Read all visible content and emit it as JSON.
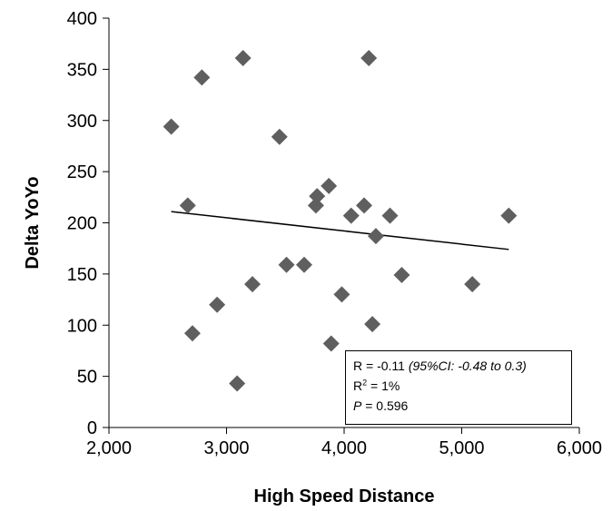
{
  "chart_data": {
    "type": "scatter",
    "title": "",
    "xlabel": "High Speed Distance",
    "ylabel": "Delta YoYo",
    "xlim": [
      2000,
      6000
    ],
    "ylim": [
      0,
      400
    ],
    "x_ticks": [
      "2,000",
      "3,000",
      "4,000",
      "5,000",
      "6,000"
    ],
    "y_ticks": [
      "0",
      "50",
      "100",
      "150",
      "200",
      "250",
      "300",
      "350",
      "400"
    ],
    "grid": false,
    "legend": "none",
    "marker": "diamond",
    "marker_color": "#5f5f5f",
    "points": [
      {
        "x": 2530,
        "y": 294
      },
      {
        "x": 2670,
        "y": 217
      },
      {
        "x": 2710,
        "y": 92
      },
      {
        "x": 2790,
        "y": 342
      },
      {
        "x": 2920,
        "y": 120
      },
      {
        "x": 3090,
        "y": 43
      },
      {
        "x": 3140,
        "y": 361
      },
      {
        "x": 3220,
        "y": 140
      },
      {
        "x": 3450,
        "y": 284
      },
      {
        "x": 3510,
        "y": 159
      },
      {
        "x": 3660,
        "y": 159
      },
      {
        "x": 3760,
        "y": 217
      },
      {
        "x": 3770,
        "y": 226
      },
      {
        "x": 3870,
        "y": 236
      },
      {
        "x": 3890,
        "y": 82
      },
      {
        "x": 3980,
        "y": 130
      },
      {
        "x": 4060,
        "y": 207
      },
      {
        "x": 4170,
        "y": 217
      },
      {
        "x": 4210,
        "y": 361
      },
      {
        "x": 4240,
        "y": 101
      },
      {
        "x": 4270,
        "y": 187
      },
      {
        "x": 4390,
        "y": 207
      },
      {
        "x": 4490,
        "y": 149
      },
      {
        "x": 5090,
        "y": 140
      },
      {
        "x": 5400,
        "y": 207
      }
    ],
    "trendline": {
      "type": "linear",
      "color": "#000000",
      "x": [
        2530,
        5400
      ],
      "y": [
        211,
        174
      ]
    },
    "annotation": {
      "r_line": "R = -0.11 ",
      "ci_text": "(95%CI: -0.48 to 0.3)",
      "r2_prefix": "R",
      "r2_sup": "2",
      "r2_value": " = 1%",
      "p_label": "P",
      "p_value": " = 0.596"
    }
  }
}
